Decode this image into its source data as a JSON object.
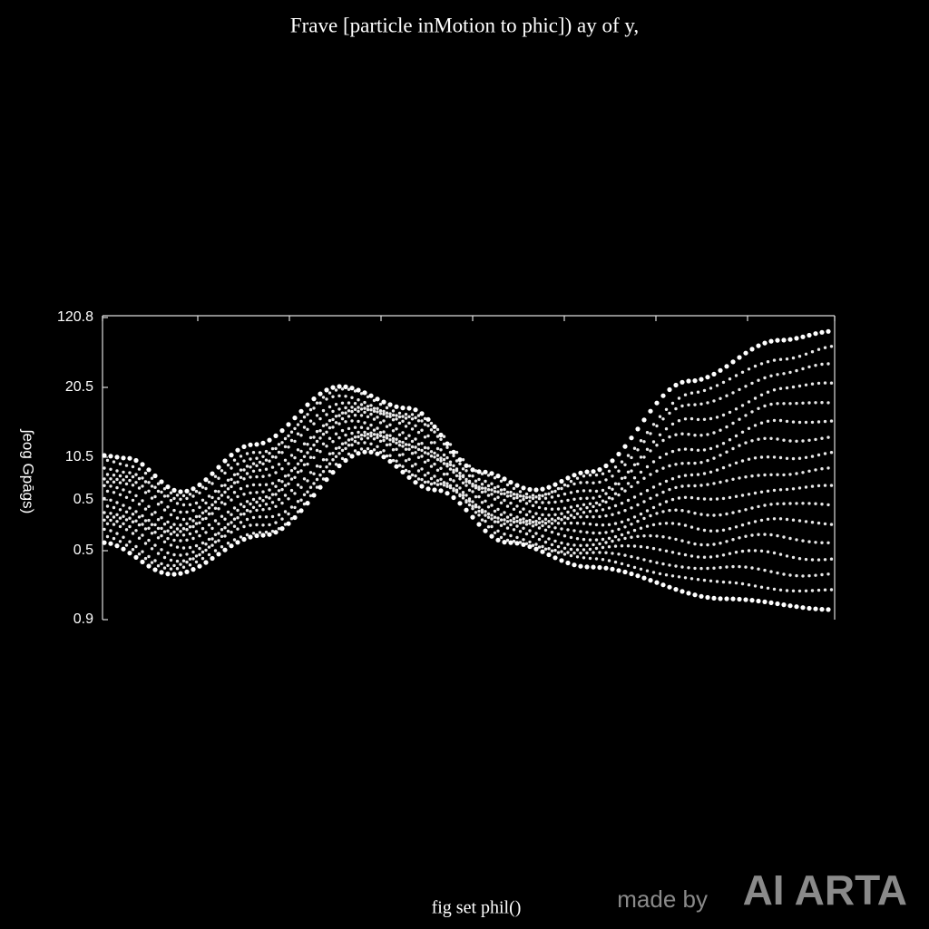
{
  "title": "Frave [particle inMotion to phic]) ay of y,",
  "axis": {
    "label": "ʃeog Gpāgs)",
    "ticks": [
      "120.8",
      "20.5",
      "10.5",
      "0.5",
      "0.5",
      "0.9"
    ]
  },
  "caption": "fig set phil()",
  "watermark": {
    "prefix": "made by",
    "brand": "AI ARTA"
  }
}
